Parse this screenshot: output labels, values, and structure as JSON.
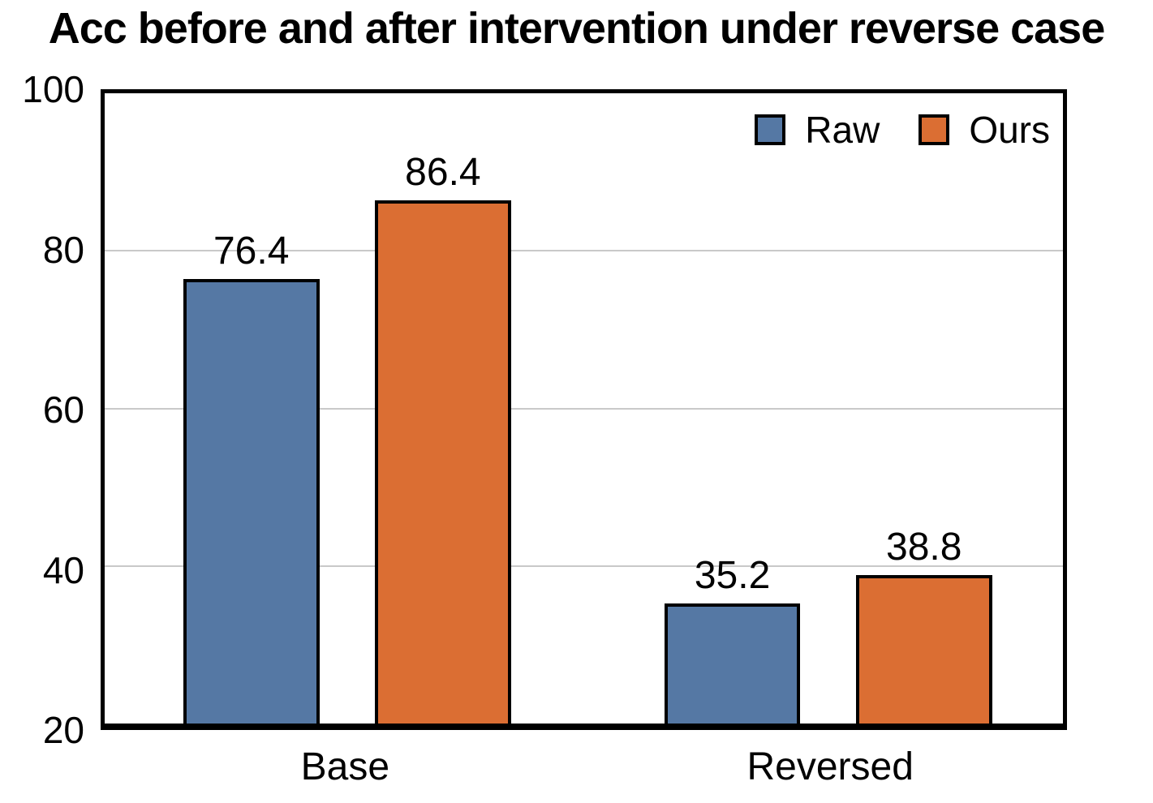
{
  "chart_data": {
    "type": "bar",
    "title": "Acc before and after intervention under reverse case",
    "categories": [
      "Base",
      "Reversed"
    ],
    "series": [
      {
        "name": "Raw",
        "color": "#5578A4",
        "values": [
          76.4,
          35.2
        ]
      },
      {
        "name": "Ours",
        "color": "#DB6E33",
        "values": [
          86.4,
          38.8
        ]
      }
    ],
    "xlabel": "",
    "ylabel": "",
    "ylim": [
      20,
      100
    ],
    "yticks": [
      20,
      40,
      60,
      80,
      100
    ],
    "gridlines": [
      40,
      60,
      80
    ],
    "grid": true,
    "legend_position": "top-right",
    "bar_border_color": "#000000",
    "gridline_color": "#c9c9c9",
    "frame_color": "#000000"
  }
}
